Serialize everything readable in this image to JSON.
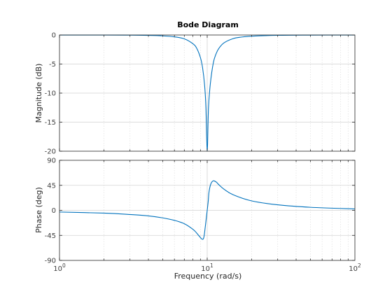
{
  "chart_data": {
    "type": "line",
    "title": "Bode Diagram",
    "xlabel": "Frequency  (rad/s)",
    "x_scale": "log",
    "xlim": [
      1,
      100
    ],
    "x_ticks": [
      {
        "value": 1,
        "base": "10",
        "exp": "0"
      },
      {
        "value": 10,
        "base": "10",
        "exp": "1"
      },
      {
        "value": 100,
        "base": "10",
        "exp": "2"
      }
    ],
    "grid": true,
    "line_color": "#0072BD",
    "panels": [
      {
        "id": "magnitude",
        "ylabel": "Magnitude (dB)",
        "ylim": [
          -20,
          0
        ],
        "y_ticks": [
          {
            "value": 0,
            "label": "0"
          },
          {
            "value": -5,
            "label": "-5"
          },
          {
            "value": -10,
            "label": "-10"
          },
          {
            "value": -15,
            "label": "-15"
          },
          {
            "value": -20,
            "label": "-20"
          }
        ],
        "series": [
          {
            "x": [
              1,
              2,
              3,
              4,
              5,
              6,
              7,
              8,
              8.5,
              9,
              9.3,
              9.6,
              9.8,
              10,
              10.2,
              10.5,
              11,
              11.5,
              12,
              13,
              15,
              17,
              20,
              30,
              50,
              100
            ],
            "values": [
              -0.002,
              -0.01,
              -0.03,
              -0.07,
              -0.15,
              -0.32,
              -0.66,
              -1.5,
              -2.3,
              -3.9,
              -5.6,
              -8.6,
              -12.4,
              -20,
              -12.6,
              -8.4,
              -4.8,
              -3.2,
              -2.3,
              -1.35,
              -0.62,
              -0.36,
              -0.2,
              -0.06,
              -0.02,
              -0.004
            ]
          }
        ]
      },
      {
        "id": "phase",
        "ylabel": "Phase (deg)",
        "ylim": [
          -90,
          90
        ],
        "y_ticks": [
          {
            "value": 90,
            "label": "90"
          },
          {
            "value": 45,
            "label": "45"
          },
          {
            "value": 0,
            "label": "0"
          },
          {
            "value": -45,
            "label": "-45"
          },
          {
            "value": -90,
            "label": "-90"
          }
        ],
        "series": [
          {
            "x": [
              1,
              2,
              3,
              4,
              5,
              6,
              7,
              8,
              8.5,
              9,
              9.3,
              9.5,
              9.7,
              9.85,
              10,
              10.15,
              10.3,
              10.6,
              11,
              11.5,
              12,
              13,
              15,
              20,
              30,
              50,
              100
            ],
            "values": [
              -3,
              -5,
              -7.5,
              -10,
              -13.5,
              -18,
              -24,
              -34,
              -41,
              -49,
              -52,
              -48,
              -30,
              -15,
              0,
              15,
              34,
              48,
              53,
              51,
              46,
              38,
              28,
              17,
              10,
              5.5,
              2.5
            ]
          }
        ]
      }
    ]
  }
}
